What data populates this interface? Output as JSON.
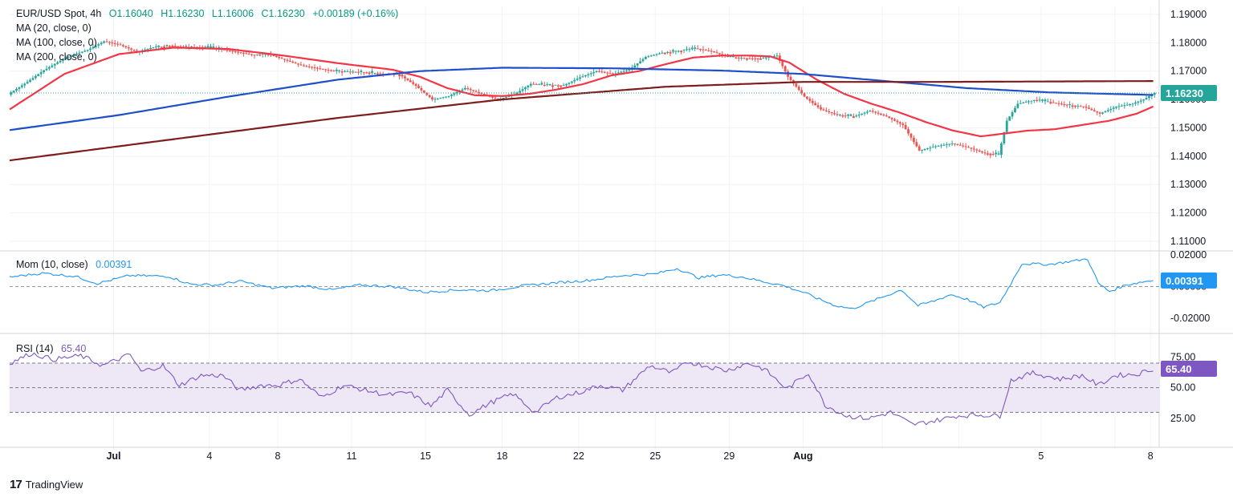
{
  "header": {
    "symbol": "EUR/USD Spot, 4h",
    "open": "O1.16040",
    "high": "H1.16230",
    "low": "L1.16006",
    "close": "C1.16230",
    "change": "+0.00189 (+0.16%)"
  },
  "indicators": {
    "ma20": "MA (20, close, 0)",
    "ma100": "MA (100, close, 0)",
    "ma200": "MA (200, close, 0)",
    "mom_label": "Mom (10, close)",
    "mom_value": "0.00391",
    "rsi_label": "RSI (14)",
    "rsi_value": "65.40"
  },
  "colors": {
    "up": "#26a69a",
    "down": "#ef5350",
    "ma20": "#f23645",
    "ma100": "#1e4fc8",
    "ma200": "#7f1d1d",
    "mom": "#2196f3",
    "rsi": "#7e57c2",
    "rsi_band": "#ede7f6"
  },
  "brand": "TradingView",
  "chart_data": [
    {
      "type": "candlestick",
      "pane": "price",
      "x_ticks": [
        "Jul",
        "4",
        "8",
        "11",
        "15",
        "18",
        "22",
        "25",
        "29",
        "Aug",
        "5",
        "8"
      ],
      "y_ticks": [
        "1.19000",
        "1.18000",
        "1.17000",
        "1.16000",
        "1.15000",
        "1.14000",
        "1.13000",
        "1.12000",
        "1.11000"
      ],
      "ylim": [
        1.108,
        1.19
      ],
      "last_price": "1.16230",
      "price_path": [
        [
          0,
          1.1625
        ],
        [
          6,
          1.1662
        ],
        [
          12,
          1.1703
        ],
        [
          20,
          1.1748
        ],
        [
          28,
          1.1775
        ],
        [
          34,
          1.1805
        ],
        [
          40,
          1.1792
        ],
        [
          46,
          1.1768
        ],
        [
          52,
          1.1784
        ],
        [
          58,
          1.179
        ],
        [
          64,
          1.1785
        ],
        [
          70,
          1.1785
        ],
        [
          76,
          1.1778
        ],
        [
          82,
          1.1768
        ],
        [
          88,
          1.1758
        ],
        [
          94,
          1.176
        ],
        [
          100,
          1.174
        ],
        [
          106,
          1.172
        ],
        [
          112,
          1.171
        ],
        [
          118,
          1.17
        ],
        [
          124,
          1.1698
        ],
        [
          130,
          1.1695
        ],
        [
          136,
          1.169
        ],
        [
          142,
          1.1688
        ],
        [
          148,
          1.1648
        ],
        [
          154,
          1.16
        ],
        [
          160,
          1.1612
        ],
        [
          166,
          1.164
        ],
        [
          172,
          1.162
        ],
        [
          178,
          1.16
        ],
        [
          184,
          1.1618
        ],
        [
          190,
          1.1655
        ],
        [
          196,
          1.165
        ],
        [
          202,
          1.165
        ],
        [
          208,
          1.1678
        ],
        [
          214,
          1.17
        ],
        [
          220,
          1.169
        ],
        [
          226,
          1.1705
        ],
        [
          232,
          1.175
        ],
        [
          238,
          1.1765
        ],
        [
          244,
          1.1772
        ],
        [
          250,
          1.178
        ],
        [
          256,
          1.177
        ],
        [
          262,
          1.175
        ],
        [
          268,
          1.1745
        ],
        [
          274,
          1.1745
        ],
        [
          280,
          1.1755
        ],
        [
          284,
          1.168
        ],
        [
          290,
          1.161
        ],
        [
          296,
          1.1565
        ],
        [
          302,
          1.1545
        ],
        [
          308,
          1.154
        ],
        [
          314,
          1.156
        ],
        [
          320,
          1.154
        ],
        [
          326,
          1.151
        ],
        [
          332,
          1.142
        ],
        [
          338,
          1.1435
        ],
        [
          344,
          1.1445
        ],
        [
          350,
          1.143
        ],
        [
          356,
          1.141
        ],
        [
          361,
          1.1405
        ],
        [
          364,
          1.1525
        ],
        [
          368,
          1.1585
        ],
        [
          374,
          1.1598
        ],
        [
          380,
          1.159
        ],
        [
          386,
          1.158
        ],
        [
          392,
          1.1575
        ],
        [
          398,
          1.155
        ],
        [
          404,
          1.1575
        ],
        [
          410,
          1.1585
        ],
        [
          414,
          1.16
        ],
        [
          418,
          1.1623
        ]
      ],
      "moving_averages": [
        {
          "name": "MA (20, close, 0)",
          "values": [
            [
              0,
              1.1565
            ],
            [
              20,
              1.169
            ],
            [
              40,
              1.176
            ],
            [
              60,
              1.1783
            ],
            [
              80,
              1.1778
            ],
            [
              100,
              1.1755
            ],
            [
              120,
              1.1728
            ],
            [
              140,
              1.1705
            ],
            [
              150,
              1.168
            ],
            [
              160,
              1.164
            ],
            [
              170,
              1.1615
            ],
            [
              180,
              1.1612
            ],
            [
              190,
              1.162
            ],
            [
              200,
              1.1635
            ],
            [
              210,
              1.1655
            ],
            [
              220,
              1.1685
            ],
            [
              230,
              1.17
            ],
            [
              240,
              1.1725
            ],
            [
              250,
              1.1748
            ],
            [
              260,
              1.1755
            ],
            [
              270,
              1.1755
            ],
            [
              278,
              1.1752
            ],
            [
              285,
              1.173
            ],
            [
              295,
              1.167
            ],
            [
              305,
              1.162
            ],
            [
              315,
              1.1585
            ],
            [
              325,
              1.1555
            ],
            [
              335,
              1.152
            ],
            [
              345,
              1.149
            ],
            [
              355,
              1.147
            ],
            [
              362,
              1.1478
            ],
            [
              372,
              1.149
            ],
            [
              382,
              1.1495
            ],
            [
              392,
              1.151
            ],
            [
              402,
              1.1525
            ],
            [
              412,
              1.155
            ],
            [
              418,
              1.1575
            ]
          ]
        },
        {
          "name": "MA (100, close, 0)",
          "values": [
            [
              0,
              1.1492
            ],
            [
              40,
              1.1545
            ],
            [
              80,
              1.161
            ],
            [
              120,
              1.167
            ],
            [
              150,
              1.17
            ],
            [
              180,
              1.1712
            ],
            [
              220,
              1.171
            ],
            [
              260,
              1.1702
            ],
            [
              290,
              1.169
            ],
            [
              320,
              1.1665
            ],
            [
              350,
              1.164
            ],
            [
              380,
              1.1625
            ],
            [
              418,
              1.1616
            ]
          ]
        },
        {
          "name": "MA (200, close, 0)",
          "values": [
            [
              0,
              1.1385
            ],
            [
              60,
              1.146
            ],
            [
              120,
              1.1535
            ],
            [
              180,
              1.16
            ],
            [
              240,
              1.1645
            ],
            [
              290,
              1.1662
            ],
            [
              340,
              1.1662
            ],
            [
              418,
              1.1665
            ]
          ]
        }
      ]
    },
    {
      "type": "line",
      "pane": "momentum",
      "name": "Mom (10, close)",
      "y_ticks": [
        "0.02000",
        "0.00000",
        "-0.02000"
      ],
      "ylim": [
        -0.024,
        0.02
      ],
      "last_value": "0.00391",
      "values": [
        [
          0,
          0.006
        ],
        [
          12,
          0.0085
        ],
        [
          24,
          0.0065
        ],
        [
          32,
          0.002
        ],
        [
          44,
          0.007
        ],
        [
          58,
          0.0065
        ],
        [
          66,
          0.0015
        ],
        [
          76,
          0.001
        ],
        [
          84,
          0.0035
        ],
        [
          96,
          -0.001
        ],
        [
          108,
          0.0005
        ],
        [
          118,
          -0.002
        ],
        [
          128,
          0.001
        ],
        [
          140,
          0.0
        ],
        [
          152,
          -0.0035
        ],
        [
          164,
          -0.002
        ],
        [
          176,
          -0.0025
        ],
        [
          188,
          0.0005
        ],
        [
          200,
          0.0025
        ],
        [
          212,
          0.004
        ],
        [
          224,
          0.007
        ],
        [
          236,
          0.008
        ],
        [
          244,
          0.0115
        ],
        [
          252,
          0.0055
        ],
        [
          260,
          0.0075
        ],
        [
          268,
          0.006
        ],
        [
          276,
          0.003
        ],
        [
          282,
          0.001
        ],
        [
          290,
          -0.0035
        ],
        [
          296,
          -0.008
        ],
        [
          302,
          -0.012
        ],
        [
          308,
          -0.014
        ],
        [
          314,
          -0.01
        ],
        [
          320,
          -0.006
        ],
        [
          326,
          -0.002
        ],
        [
          332,
          -0.012
        ],
        [
          338,
          -0.009
        ],
        [
          344,
          -0.005
        ],
        [
          350,
          -0.008
        ],
        [
          356,
          -0.013
        ],
        [
          362,
          -0.01
        ],
        [
          366,
          0.002
        ],
        [
          370,
          0.0145
        ],
        [
          380,
          0.014
        ],
        [
          390,
          0.0165
        ],
        [
          394,
          0.0175
        ],
        [
          398,
          0.002
        ],
        [
          402,
          -0.003
        ],
        [
          408,
          0.001
        ],
        [
          414,
          0.003
        ],
        [
          418,
          0.0039
        ]
      ]
    },
    {
      "type": "line",
      "pane": "rsi",
      "name": "RSI (14)",
      "y_ticks": [
        "75.00",
        "50.00",
        "25.00"
      ],
      "ylim": [
        10,
        85
      ],
      "band": [
        30,
        70
      ],
      "midline": 50,
      "last_value": "65.40",
      "values": [
        [
          0,
          70
        ],
        [
          8,
          78
        ],
        [
          16,
          73
        ],
        [
          26,
          76
        ],
        [
          34,
          68
        ],
        [
          44,
          77
        ],
        [
          48,
          63
        ],
        [
          56,
          68
        ],
        [
          62,
          52
        ],
        [
          70,
          60
        ],
        [
          78,
          60
        ],
        [
          84,
          48
        ],
        [
          92,
          52
        ],
        [
          98,
          52
        ],
        [
          106,
          57
        ],
        [
          114,
          42
        ],
        [
          122,
          52
        ],
        [
          130,
          48
        ],
        [
          138,
          44
        ],
        [
          146,
          46
        ],
        [
          154,
          35
        ],
        [
          160,
          48
        ],
        [
          168,
          28
        ],
        [
          176,
          38
        ],
        [
          184,
          45
        ],
        [
          192,
          30
        ],
        [
          200,
          42
        ],
        [
          208,
          46
        ],
        [
          216,
          52
        ],
        [
          224,
          48
        ],
        [
          234,
          68
        ],
        [
          242,
          62
        ],
        [
          248,
          71
        ],
        [
          256,
          67
        ],
        [
          262,
          64
        ],
        [
          270,
          70
        ],
        [
          276,
          65
        ],
        [
          284,
          49
        ],
        [
          292,
          62
        ],
        [
          298,
          36
        ],
        [
          306,
          27
        ],
        [
          314,
          25
        ],
        [
          322,
          30
        ],
        [
          330,
          20
        ],
        [
          338,
          23
        ],
        [
          346,
          27
        ],
        [
          354,
          28
        ],
        [
          362,
          27
        ],
        [
          366,
          56
        ],
        [
          374,
          62
        ],
        [
          384,
          57
        ],
        [
          392,
          60
        ],
        [
          398,
          52
        ],
        [
          404,
          60
        ],
        [
          412,
          61
        ],
        [
          418,
          65.4
        ]
      ]
    }
  ]
}
